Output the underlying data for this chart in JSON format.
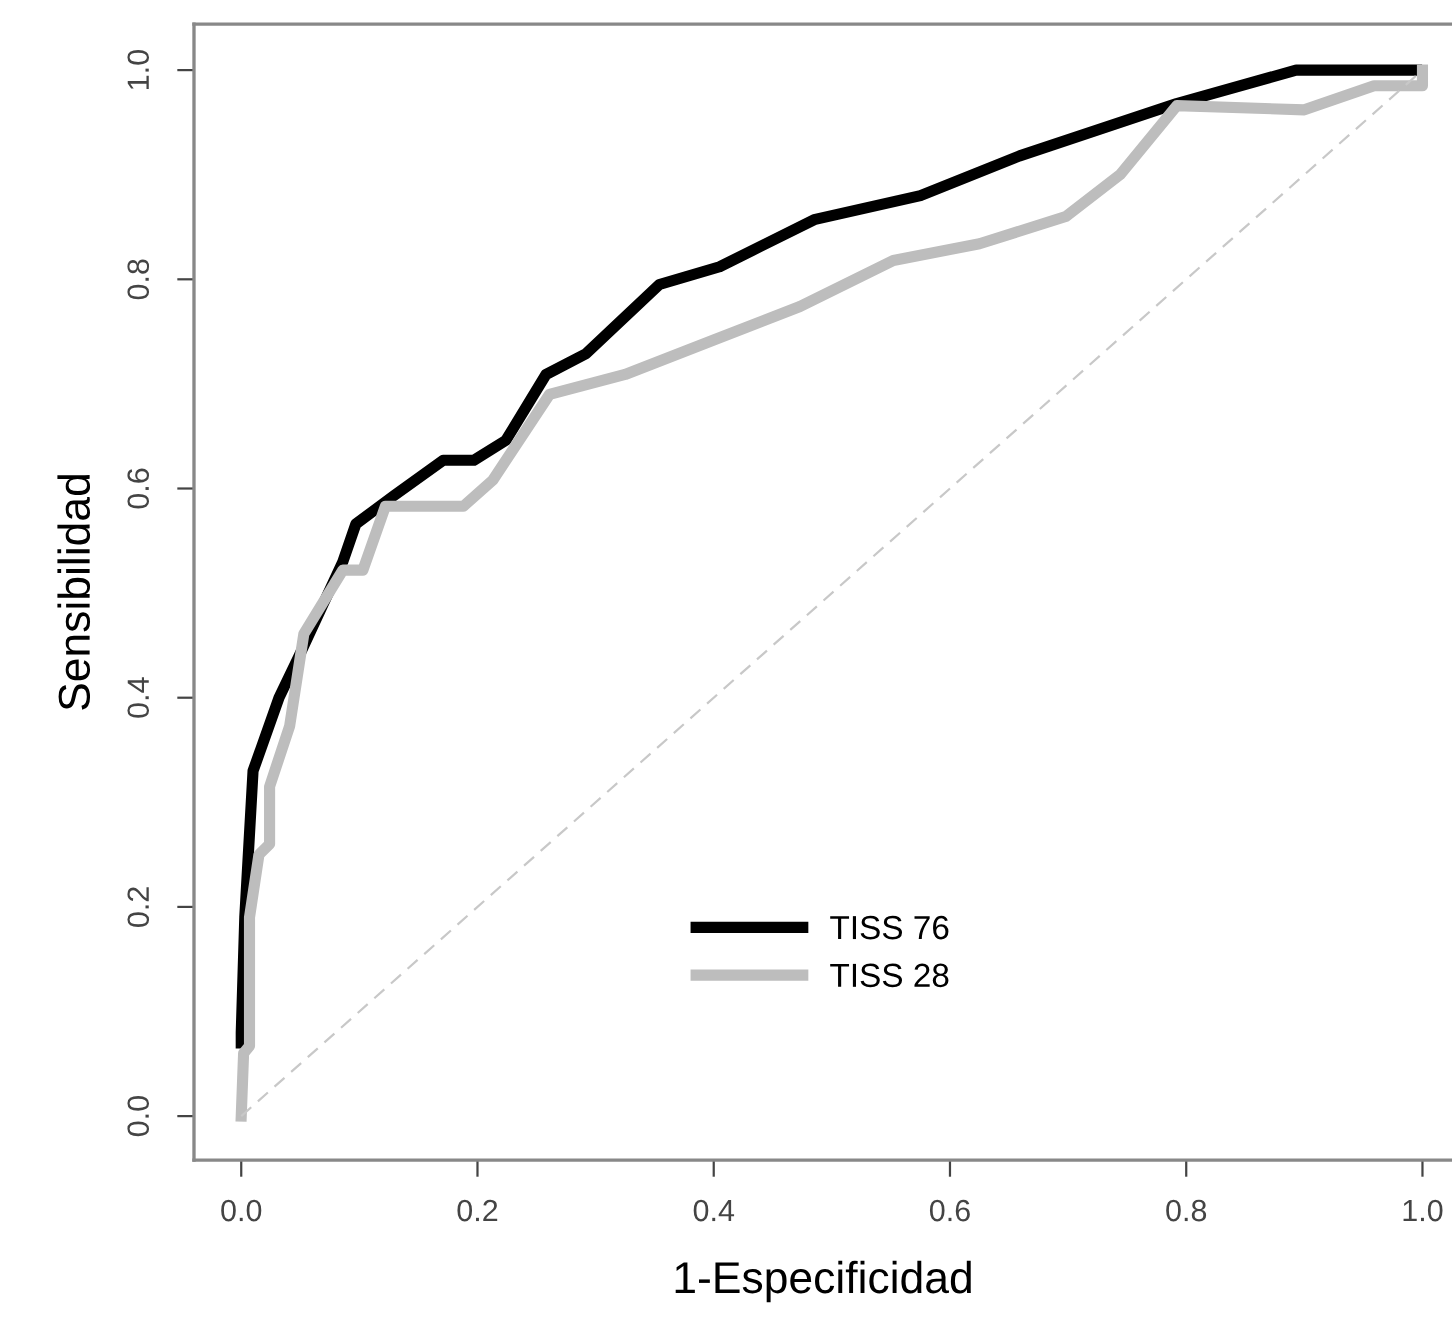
{
  "chart_data": {
    "type": "line",
    "xlabel": "1-Especificidad",
    "ylabel": "Sensibilidad",
    "xlim": [
      -0.04,
      1.025
    ],
    "ylim": [
      -0.042,
      1.044
    ],
    "xticks": [
      {
        "value": 0,
        "label": "0.0"
      },
      0.2,
      0.4,
      0.6,
      0.8,
      {
        "value": 1,
        "label": "1.0"
      }
    ],
    "yticks": [
      {
        "value": 0,
        "label": "0.0"
      },
      0.2,
      0.4,
      0.6,
      0.8,
      {
        "value": 1,
        "label": "1.0"
      }
    ],
    "grid": false,
    "legend": "bottom",
    "marker": "none",
    "series": [
      {
        "name": "TISS 76",
        "color": "#000000",
        "line_style": "solid",
        "x": [
          0,
          0,
          0.003,
          0.01,
          0.032,
          0.049,
          0.086,
          0.097,
          0.129,
          0.171,
          0.197,
          0.224,
          0.258,
          0.292,
          0.354,
          0.405,
          0.485,
          0.575,
          0.659,
          0.792,
          0.893,
          0.995
        ],
        "values": [
          0.07,
          0.08,
          0.19,
          0.33,
          0.4,
          0.44,
          0.53,
          0.566,
          0.593,
          0.627,
          0.627,
          0.646,
          0.709,
          0.729,
          0.795,
          0.812,
          0.857,
          0.88,
          0.918,
          0.968,
          1.0,
          1.0
        ]
      },
      {
        "name": "TISS 28",
        "color": "#bdbdbd",
        "line_style": "solid",
        "x": [
          0,
          0.002,
          0.007,
          0.007,
          0.015,
          0.024,
          0.024,
          0.041,
          0.053,
          0.086,
          0.103,
          0.122,
          0.188,
          0.213,
          0.261,
          0.325,
          0.4,
          0.473,
          0.552,
          0.625,
          0.698,
          0.744,
          0.792,
          0.9,
          0.959,
          1.0,
          1.0
        ],
        "values": [
          0,
          0.06,
          0.067,
          0.19,
          0.25,
          0.26,
          0.315,
          0.373,
          0.461,
          0.522,
          0.522,
          0.583,
          0.583,
          0.608,
          0.69,
          0.709,
          0.742,
          0.774,
          0.818,
          0.834,
          0.86,
          0.9,
          0.966,
          0.962,
          0.985,
          0.985,
          1.0
        ]
      },
      {
        "color": "#c8c8c8",
        "line_style": "dashed",
        "x": [
          0,
          1
        ],
        "values": [
          0,
          1
        ]
      }
    ]
  }
}
